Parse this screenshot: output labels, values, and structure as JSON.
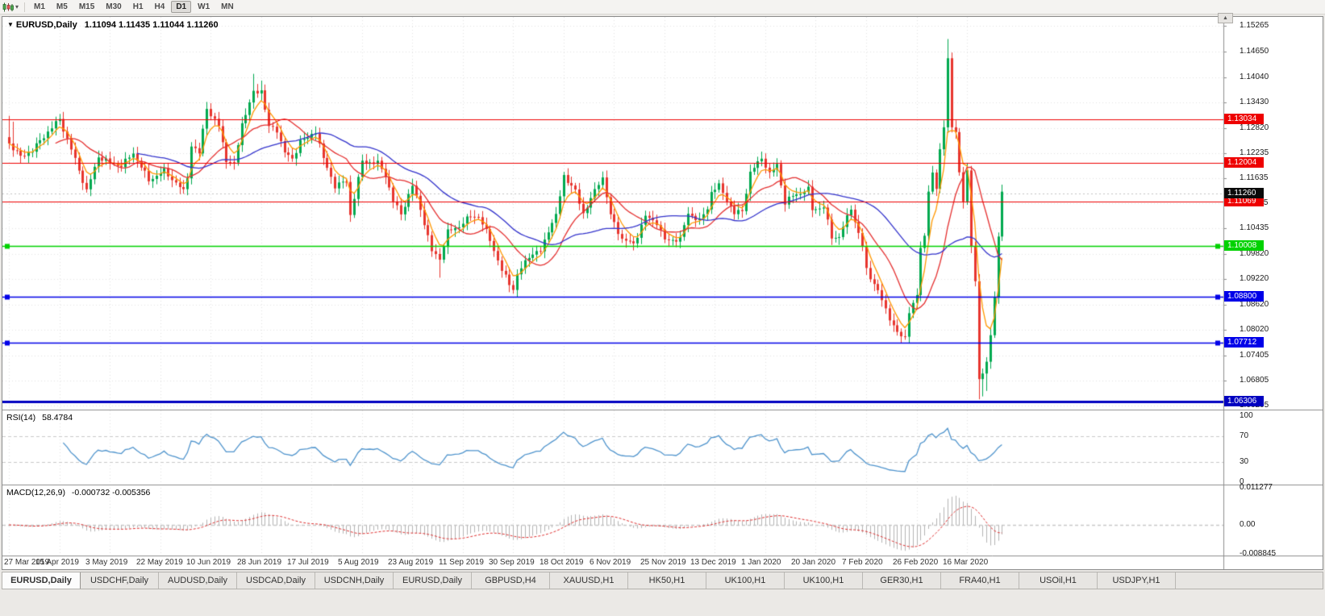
{
  "toolbar": {
    "timeframes": [
      "M1",
      "M5",
      "M15",
      "M30",
      "H1",
      "H4",
      "D1",
      "W1",
      "MN"
    ],
    "active_timeframe": "D1",
    "scroll_up_icon": "▲"
  },
  "chart": {
    "menu_icon": "▼",
    "symbol_period": "EURUSD,Daily",
    "ohlc": "1.11094 1.11435 1.11044 1.11260"
  },
  "price_axis": {
    "current": "1.11260",
    "labels": [
      "1.15265",
      "1.14650",
      "1.14040",
      "1.13430",
      "1.12820",
      "1.12235",
      "1.11635",
      "1.11035",
      "1.10435",
      "1.09820",
      "1.09220",
      "1.08620",
      "1.08020",
      "1.07405",
      "1.06805",
      "1.06205"
    ]
  },
  "hlines": [
    {
      "value": 1.13034,
      "label": "1.13034",
      "color": "#ee0000",
      "width": 1.2,
      "handles": false
    },
    {
      "value": 1.12004,
      "label": "1.12004",
      "color": "#ee0000",
      "width": 1.2,
      "handles": false
    },
    {
      "value": 1.11069,
      "label": "1.11069",
      "color": "#ee0000",
      "width": 1.2,
      "handles": false
    },
    {
      "value": 1.10008,
      "label": "1.10008",
      "color": "#00d200",
      "width": 1.6,
      "handles": true
    },
    {
      "value": 1.088,
      "label": "1.08800",
      "color": "#0000e8",
      "width": 1.6,
      "handles": true
    },
    {
      "value": 1.07712,
      "label": "1.07712",
      "color": "#0000e8",
      "width": 1.6,
      "handles": true
    },
    {
      "value": 1.06306,
      "label": "1.06306",
      "color": "#0000c0",
      "width": 3,
      "handles": false
    }
  ],
  "indicators": {
    "rsi": {
      "name": "RSI(14)",
      "value": "58.4784",
      "color": "#4f94cd",
      "scale": [
        "100",
        "70",
        "30",
        "0"
      ],
      "levels": [
        70,
        30
      ]
    },
    "macd": {
      "name": "MACD(12,26,9)",
      "value": "-0.000732 -0.005356",
      "histogram_color": "#b4b4b4",
      "signal_color": "#e03030",
      "scale": [
        "0.011277",
        "0.00",
        "-0.008845"
      ]
    }
  },
  "x_axis": [
    "27 Mar 2019",
    "15 Apr 2019",
    "3 May 2019",
    "22 May 2019",
    "10 Jun 2019",
    "28 Jun 2019",
    "17 Jul 2019",
    "5 Aug 2019",
    "23 Aug 2019",
    "11 Sep 2019",
    "30 Sep 2019",
    "18 Oct 2019",
    "6 Nov 2019",
    "25 Nov 2019",
    "13 Dec 2019",
    "1 Jan 2020",
    "20 Jan 2020",
    "7 Feb 2020",
    "26 Feb 2020",
    "16 Mar 2020"
  ],
  "tabs": {
    "active": 0,
    "items": [
      "EURUSD,Daily",
      "USDCHF,Daily",
      "AUDUSD,Daily",
      "USDCAD,Daily",
      "USDCNH,Daily",
      "EURUSD,Daily",
      "GBPUSD,H4",
      "XAUUSD,H1",
      "HK50,H1",
      "UK100,H1",
      "UK100,H1",
      "GER30,H1",
      "FRA40,H1",
      "USOil,H1",
      "USDJPY,H1"
    ]
  },
  "chart_data": {
    "type": "candlestick",
    "symbol": "EURUSD",
    "period": "Daily",
    "bars": 257,
    "up_color": "#00a94f",
    "down_color": "#e8352e",
    "y_range": [
      1.06115,
      1.15477
    ],
    "moving_averages": [
      {
        "name": "fast",
        "type": "ema",
        "period": 5,
        "color": "#ff9800"
      },
      {
        "name": "mid",
        "type": "sma",
        "period": 13,
        "color": "#e53030"
      },
      {
        "name": "slow",
        "type": "sma",
        "period": 34,
        "color": "#3333cc"
      }
    ],
    "close_anchors": [
      [
        0,
        1.1246
      ],
      [
        3,
        1.1214
      ],
      [
        6,
        1.123
      ],
      [
        10,
        1.1274
      ],
      [
        13,
        1.1304
      ],
      [
        16,
        1.1232
      ],
      [
        20,
        1.1133
      ],
      [
        23,
        1.1215
      ],
      [
        26,
        1.12
      ],
      [
        29,
        1.1193
      ],
      [
        32,
        1.1223
      ],
      [
        36,
        1.1158
      ],
      [
        40,
        1.1181
      ],
      [
        45,
        1.1132
      ],
      [
        46,
        1.1168
      ],
      [
        47,
        1.1241
      ],
      [
        49,
        1.1222
      ],
      [
        51,
        1.1334
      ],
      [
        52,
        1.1312
      ],
      [
        54,
        1.1288
      ],
      [
        56,
        1.1207
      ],
      [
        58,
        1.1195
      ],
      [
        60,
        1.1294
      ],
      [
        63,
        1.1366
      ],
      [
        65,
        1.1373
      ],
      [
        67,
        1.1285
      ],
      [
        69,
        1.1278
      ],
      [
        71,
        1.1225
      ],
      [
        73,
        1.1207
      ],
      [
        75,
        1.1253
      ],
      [
        77,
        1.1258
      ],
      [
        79,
        1.1277
      ],
      [
        81,
        1.1209
      ],
      [
        84,
        1.1145
      ],
      [
        87,
        1.1156
      ],
      [
        88,
        1.1076
      ],
      [
        91,
        1.1203
      ],
      [
        95,
        1.1199
      ],
      [
        97,
        1.1171
      ],
      [
        99,
        1.1109
      ],
      [
        101,
        1.1078
      ],
      [
        104,
        1.1145
      ],
      [
        106,
        1.109
      ],
      [
        109,
        1.0989
      ],
      [
        111,
        1.0972
      ],
      [
        113,
        1.1035
      ],
      [
        116,
        1.1049
      ],
      [
        119,
        1.1073
      ],
      [
        121,
        1.1072
      ],
      [
        124,
        1.1017
      ],
      [
        127,
        1.0942
      ],
      [
        130,
        1.0899
      ],
      [
        131,
        1.0932
      ],
      [
        134,
        1.0979
      ],
      [
        137,
        1.0989
      ],
      [
        139,
        1.104
      ],
      [
        141,
        1.1073
      ],
      [
        143,
        1.117
      ],
      [
        146,
        1.1131
      ],
      [
        148,
        1.108
      ],
      [
        150,
        1.1113
      ],
      [
        152,
        1.1152
      ],
      [
        153,
        1.1165
      ],
      [
        155,
        1.1074
      ],
      [
        158,
        1.1018
      ],
      [
        161,
        1.1006
      ],
      [
        164,
        1.1072
      ],
      [
        167,
        1.1058
      ],
      [
        169,
        1.1015
      ],
      [
        173,
        1.1018
      ],
      [
        175,
        1.1081
      ],
      [
        178,
        1.106
      ],
      [
        180,
        1.1093
      ],
      [
        181,
        1.113
      ],
      [
        183,
        1.1145
      ],
      [
        185,
        1.1113
      ],
      [
        187,
        1.1078
      ],
      [
        189,
        1.1087
      ],
      [
        191,
        1.1175
      ],
      [
        194,
        1.1213
      ],
      [
        196,
        1.1172
      ],
      [
        198,
        1.1196
      ],
      [
        200,
        1.1103
      ],
      [
        202,
        1.1122
      ],
      [
        204,
        1.1128
      ],
      [
        206,
        1.1136
      ],
      [
        207,
        1.109
      ],
      [
        210,
        1.1093
      ],
      [
        212,
        1.1024
      ],
      [
        214,
        1.1022
      ],
      [
        217,
        1.1094
      ],
      [
        218,
        1.106
      ],
      [
        220,
        1.1
      ],
      [
        221,
        1.0946
      ],
      [
        223,
        1.0911
      ],
      [
        225,
        1.0873
      ],
      [
        227,
        1.083
      ],
      [
        229,
        1.0792
      ],
      [
        231,
        1.0785
      ],
      [
        232,
        1.0846
      ],
      [
        234,
        1.088
      ],
      [
        235,
        1.1001
      ],
      [
        236,
        1.1026
      ],
      [
        237,
        1.1134
      ],
      [
        238,
        1.1173
      ],
      [
        239,
        1.1134
      ],
      [
        240,
        1.1238
      ],
      [
        241,
        1.1284
      ],
      [
        242,
        1.145
      ],
      [
        243,
        1.1281
      ],
      [
        244,
        1.1271
      ],
      [
        245,
        1.1184
      ],
      [
        246,
        1.1106
      ],
      [
        247,
        1.1181
      ],
      [
        248,
        1.0998
      ],
      [
        249,
        1.0917
      ],
      [
        250,
        1.0691
      ],
      [
        251,
        1.0694
      ],
      [
        252,
        1.0724
      ],
      [
        253,
        1.0788
      ],
      [
        254,
        1.0881
      ],
      [
        255,
        1.103
      ],
      [
        256,
        1.1126
      ]
    ],
    "wick_overrides": {
      "high": [
        [
          0,
          1.1312
        ],
        [
          1,
          1.1298
        ],
        [
          63,
          1.1412
        ],
        [
          65,
          1.1396
        ],
        [
          242,
          1.1495
        ]
      ],
      "low": [
        [
          111,
          1.0926
        ],
        [
          131,
          1.0879
        ],
        [
          250,
          1.0636
        ],
        [
          251,
          1.0643
        ],
        [
          252,
          1.0656
        ]
      ]
    }
  }
}
